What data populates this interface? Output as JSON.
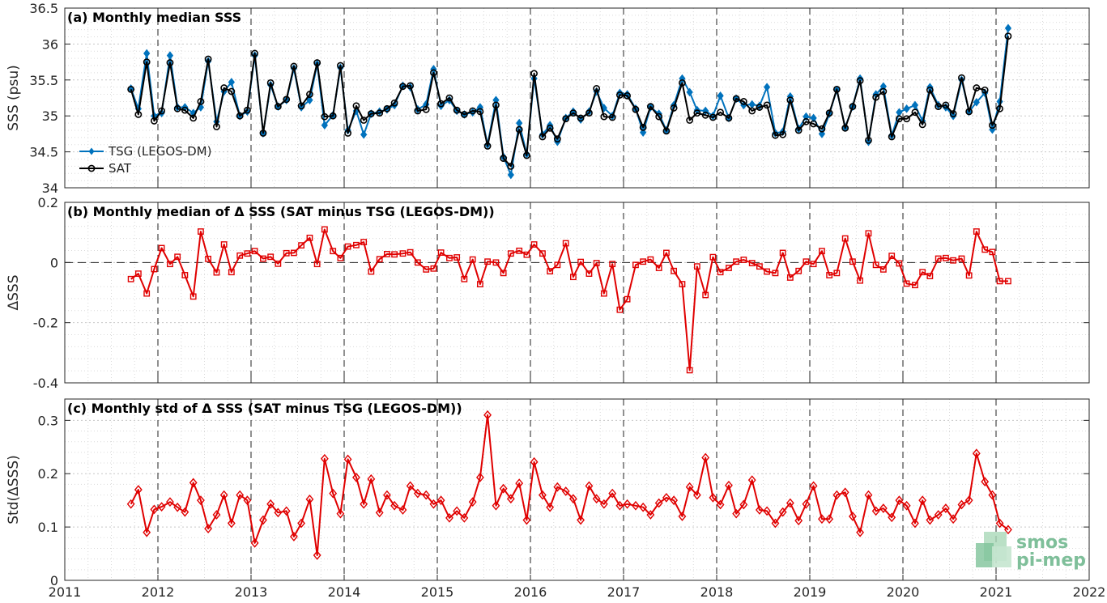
{
  "chart_data": [
    {
      "type": "line",
      "title": "(a) Monthly median SSS",
      "ylabel": "SSS (psu)",
      "xlim": [
        2011,
        2022
      ],
      "ylim": [
        34,
        36.5
      ],
      "yticks": [
        34,
        34.5,
        35,
        35.5,
        36,
        36.5
      ],
      "ytick_labels": [
        "34",
        "34.5",
        "35",
        "35.5",
        "36",
        "36.5"
      ],
      "grid": true,
      "legend_position": "bottom-left",
      "x": [
        2011.71,
        2011.79,
        2011.88,
        2011.96,
        2012.04,
        2012.13,
        2012.21,
        2012.29,
        2012.38,
        2012.46,
        2012.54,
        2012.63,
        2012.71,
        2012.79,
        2012.88,
        2012.96,
        2013.04,
        2013.13,
        2013.21,
        2013.29,
        2013.38,
        2013.46,
        2013.54,
        2013.63,
        2013.71,
        2013.79,
        2013.88,
        2013.96,
        2014.04,
        2014.13,
        2014.21,
        2014.29,
        2014.38,
        2014.46,
        2014.54,
        2014.63,
        2014.71,
        2014.79,
        2014.88,
        2014.96,
        2015.04,
        2015.13,
        2015.21,
        2015.29,
        2015.38,
        2015.46,
        2015.54,
        2015.63,
        2015.71,
        2015.79,
        2015.88,
        2015.96,
        2016.04,
        2016.13,
        2016.21,
        2016.29,
        2016.38,
        2016.46,
        2016.54,
        2016.63,
        2016.71,
        2016.79,
        2016.88,
        2016.96,
        2017.04,
        2017.13,
        2017.21,
        2017.29,
        2017.38,
        2017.46,
        2017.54,
        2017.63,
        2017.71,
        2017.79,
        2017.88,
        2017.96,
        2018.04,
        2018.13,
        2018.21,
        2018.29,
        2018.38,
        2018.46,
        2018.54,
        2018.63,
        2018.71,
        2018.79,
        2018.88,
        2018.96,
        2019.04,
        2019.13,
        2019.21,
        2019.29,
        2019.38,
        2019.46,
        2019.54,
        2019.63,
        2019.71,
        2019.79,
        2019.88,
        2019.96,
        2020.04,
        2020.13,
        2020.21,
        2020.29,
        2020.38,
        2020.46,
        2020.54,
        2020.63,
        2020.71,
        2020.79,
        2020.88,
        2020.96,
        2021.04,
        2021.13
      ],
      "series": [
        {
          "name": "TSG (LEGOS-DM)",
          "color": "#0072BD",
          "marker": "diamond-filled",
          "values": [
            35.38,
            35.1,
            35.87,
            35.0,
            35.04,
            35.84,
            35.12,
            35.12,
            35.04,
            35.12,
            35.76,
            34.92,
            35.34,
            35.47,
            35.0,
            35.06,
            35.84,
            34.76,
            35.43,
            35.13,
            35.22,
            35.66,
            35.12,
            35.22,
            35.72,
            34.87,
            35.01,
            35.67,
            34.8,
            35.07,
            34.74,
            35.03,
            35.06,
            35.09,
            35.15,
            35.42,
            35.4,
            35.09,
            35.16,
            35.65,
            35.14,
            35.22,
            35.07,
            35.02,
            35.05,
            35.12,
            34.6,
            35.22,
            34.43,
            34.18,
            34.9,
            34.47,
            35.52,
            34.74,
            34.87,
            34.64,
            34.97,
            35.06,
            34.95,
            35.06,
            35.34,
            35.11,
            35.0,
            35.32,
            35.3,
            35.1,
            34.77,
            35.12,
            35.03,
            34.8,
            35.15,
            35.52,
            35.33,
            35.08,
            35.07,
            35.0,
            35.28,
            34.97,
            35.24,
            35.15,
            35.16,
            35.14,
            35.4,
            34.76,
            34.78,
            35.27,
            34.82,
            34.99,
            34.97,
            34.75,
            35.03,
            35.36,
            34.84,
            35.13,
            35.52,
            34.64,
            35.3,
            35.41,
            34.73,
            35.05,
            35.1,
            35.15,
            34.93,
            35.4,
            35.15,
            35.12,
            35.0,
            35.5,
            35.06,
            35.19,
            35.32,
            34.81,
            35.2,
            36.22
          ]
        },
        {
          "name": "SAT",
          "color": "#000000",
          "marker": "circle-open",
          "values": [
            35.37,
            35.02,
            35.75,
            34.93,
            35.07,
            35.74,
            35.1,
            35.08,
            34.97,
            35.2,
            35.79,
            34.85,
            35.39,
            35.34,
            35.0,
            35.08,
            35.87,
            34.76,
            35.46,
            35.13,
            35.23,
            35.69,
            35.14,
            35.3,
            35.74,
            34.99,
            35.0,
            35.7,
            34.76,
            35.14,
            34.94,
            35.03,
            35.04,
            35.1,
            35.18,
            35.41,
            35.42,
            35.07,
            35.09,
            35.6,
            35.17,
            35.25,
            35.08,
            35.02,
            35.07,
            35.06,
            34.58,
            35.15,
            34.41,
            34.3,
            34.81,
            34.45,
            35.59,
            34.71,
            34.83,
            34.68,
            34.96,
            35.04,
            34.97,
            35.04,
            35.38,
            34.99,
            34.98,
            35.29,
            35.28,
            35.09,
            34.84,
            35.13,
            34.99,
            34.79,
            35.11,
            35.46,
            34.94,
            35.04,
            35.01,
            34.98,
            35.05,
            34.97,
            35.24,
            35.2,
            35.07,
            35.12,
            35.15,
            34.73,
            34.74,
            35.22,
            34.8,
            34.92,
            34.89,
            34.82,
            35.04,
            35.37,
            34.83,
            35.13,
            35.49,
            34.66,
            35.26,
            35.34,
            34.71,
            34.96,
            34.96,
            35.05,
            34.88,
            35.36,
            35.13,
            35.15,
            35.03,
            35.53,
            35.06,
            35.39,
            35.36,
            34.87,
            35.1,
            36.11
          ]
        }
      ]
    },
    {
      "type": "line",
      "title": "(b) Monthly median of Δ SSS (SAT minus TSG (LEGOS-DM))",
      "ylabel": "ΔSSS",
      "xlim": [
        2011,
        2022
      ],
      "ylim": [
        -0.4,
        0.2
      ],
      "yticks": [
        -0.4,
        -0.2,
        0,
        0.2
      ],
      "ytick_labels": [
        "-0.4",
        "-0.2",
        "0",
        "0.2"
      ],
      "zero_line": true,
      "grid": true,
      "series": [
        {
          "name": "",
          "color": "#E00000",
          "marker": "square-open",
          "values": [
            -0.055,
            -0.037,
            -0.103,
            -0.022,
            0.048,
            -0.005,
            0.019,
            -0.042,
            -0.113,
            0.103,
            0.012,
            -0.033,
            0.06,
            -0.032,
            0.023,
            0.03,
            0.038,
            0.013,
            0.019,
            -0.004,
            0.031,
            0.032,
            0.057,
            0.082,
            -0.005,
            0.11,
            0.038,
            0.015,
            0.053,
            0.058,
            0.068,
            -0.03,
            0.011,
            0.028,
            0.027,
            0.03,
            0.034,
            0.0,
            -0.023,
            -0.02,
            0.033,
            0.015,
            0.017,
            -0.055,
            0.01,
            -0.072,
            0.003,
            0.0,
            -0.035,
            0.03,
            0.039,
            0.026,
            0.06,
            0.03,
            -0.029,
            -0.008,
            0.064,
            -0.048,
            0.002,
            -0.037,
            -0.002,
            -0.103,
            -0.005,
            -0.157,
            -0.122,
            -0.008,
            0.003,
            0.01,
            -0.018,
            0.032,
            -0.028,
            -0.072,
            -0.358,
            -0.013,
            -0.108,
            0.018,
            -0.032,
            -0.018,
            0.003,
            0.009,
            -0.002,
            -0.013,
            -0.03,
            -0.035,
            0.032,
            -0.05,
            -0.028,
            0.003,
            -0.005,
            0.038,
            -0.042,
            -0.035,
            0.08,
            0.003,
            -0.06,
            0.097,
            -0.008,
            -0.023,
            0.022,
            -0.003,
            -0.07,
            -0.075,
            -0.032,
            -0.045,
            0.013,
            0.015,
            0.007,
            0.013,
            -0.043,
            0.103,
            0.043,
            0.035,
            -0.062,
            -0.062
          ]
        }
      ]
    },
    {
      "type": "line",
      "title": "(c) Monthly std of Δ SSS (SAT minus TSG (LEGOS-DM))",
      "ylabel": "Std(ΔSSS)",
      "xlabel": "",
      "xlim": [
        2011,
        2022
      ],
      "ylim": [
        0,
        0.34
      ],
      "yticks": [
        0,
        0.1,
        0.2,
        0.3
      ],
      "ytick_labels": [
        "0",
        "0.1",
        "0.2",
        "0.3"
      ],
      "grid": true,
      "series": [
        {
          "name": "",
          "color": "#E00000",
          "marker": "diamond-open",
          "values": [
            0.143,
            0.17,
            0.09,
            0.133,
            0.138,
            0.147,
            0.137,
            0.128,
            0.183,
            0.15,
            0.097,
            0.123,
            0.16,
            0.107,
            0.16,
            0.15,
            0.07,
            0.113,
            0.143,
            0.127,
            0.13,
            0.082,
            0.107,
            0.152,
            0.047,
            0.228,
            0.163,
            0.125,
            0.227,
            0.193,
            0.143,
            0.19,
            0.127,
            0.16,
            0.14,
            0.132,
            0.177,
            0.163,
            0.16,
            0.143,
            0.15,
            0.117,
            0.13,
            0.117,
            0.147,
            0.193,
            0.31,
            0.14,
            0.172,
            0.153,
            0.182,
            0.113,
            0.222,
            0.16,
            0.137,
            0.175,
            0.167,
            0.153,
            0.113,
            0.177,
            0.153,
            0.143,
            0.163,
            0.14,
            0.143,
            0.14,
            0.137,
            0.123,
            0.145,
            0.155,
            0.15,
            0.12,
            0.175,
            0.16,
            0.23,
            0.155,
            0.142,
            0.178,
            0.125,
            0.142,
            0.188,
            0.132,
            0.13,
            0.107,
            0.128,
            0.145,
            0.112,
            0.143,
            0.177,
            0.115,
            0.115,
            0.16,
            0.165,
            0.12,
            0.09,
            0.16,
            0.13,
            0.135,
            0.118,
            0.15,
            0.14,
            0.107,
            0.15,
            0.113,
            0.123,
            0.135,
            0.115,
            0.142,
            0.15,
            0.238,
            0.185,
            0.16,
            0.107,
            0.095
          ]
        }
      ]
    }
  ],
  "xticks": [
    2011,
    2012,
    2013,
    2014,
    2015,
    2016,
    2017,
    2018,
    2019,
    2020,
    2021,
    2022
  ],
  "xtick_labels": [
    "2011",
    "2012",
    "2013",
    "2014",
    "2015",
    "2016",
    "2017",
    "2018",
    "2019",
    "2020",
    "2021",
    "2022"
  ],
  "logo": {
    "line1": "smos",
    "line2": "pi-mep"
  }
}
